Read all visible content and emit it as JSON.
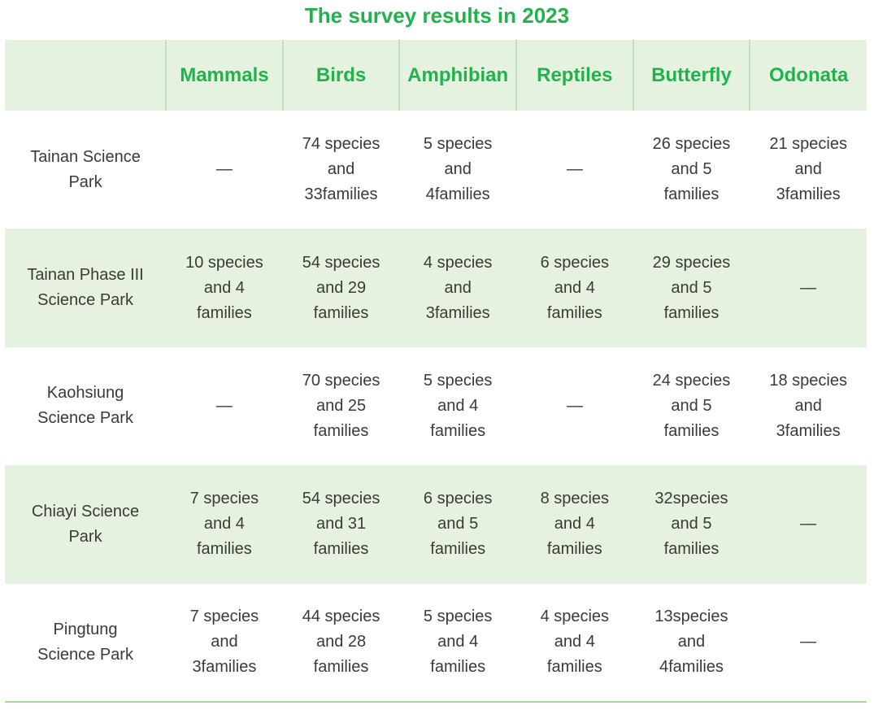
{
  "title": "The survey results in 2023",
  "columns": [
    "",
    "Mammals",
    "Birds",
    "Amphibian",
    "Reptiles",
    "Butterfly",
    "Odonata"
  ],
  "rows": [
    {
      "park": [
        "Tainan Science",
        "Park"
      ],
      "cells": [
        [
          "—"
        ],
        [
          "74 species",
          "and",
          "33families"
        ],
        [
          "5 species",
          "and",
          "4families"
        ],
        [
          "—"
        ],
        [
          "26 species",
          "and 5",
          "families"
        ],
        [
          "21 species",
          "and",
          "3families"
        ]
      ]
    },
    {
      "park": [
        "Tainan Phase III",
        "Science Park"
      ],
      "cells": [
        [
          "10 species",
          "and 4",
          "families"
        ],
        [
          "54 species",
          "and 29",
          "families"
        ],
        [
          "4 species",
          "and",
          "3families"
        ],
        [
          "6 species",
          "and 4",
          "families"
        ],
        [
          "29 species",
          "and 5",
          "families"
        ],
        [
          "—"
        ]
      ]
    },
    {
      "park": [
        "Kaohsiung",
        "Science Park"
      ],
      "cells": [
        [
          "—"
        ],
        [
          "70 species",
          "and 25",
          "families"
        ],
        [
          "5 species",
          "and 4",
          "families"
        ],
        [
          "—"
        ],
        [
          "24 species",
          "and 5",
          "families"
        ],
        [
          "18 species",
          "and",
          "3families"
        ]
      ]
    },
    {
      "park": [
        "Chiayi Science",
        "Park"
      ],
      "cells": [
        [
          "7 species",
          "and 4",
          "families"
        ],
        [
          "54 species",
          "and 31",
          "families"
        ],
        [
          "6 species",
          "and 5",
          "families"
        ],
        [
          "8 species",
          "and 4",
          "families"
        ],
        [
          "32species",
          "and 5",
          "families"
        ],
        [
          "—"
        ]
      ]
    },
    {
      "park": [
        "Pingtung",
        "Science Park"
      ],
      "cells": [
        [
          "7 species",
          "and",
          "3families"
        ],
        [
          "44 species",
          "and 28",
          "families"
        ],
        [
          "5 species",
          "and 4",
          "families"
        ],
        [
          "4 species",
          "and 4",
          "families"
        ],
        [
          "13species",
          "and",
          "4families"
        ],
        [
          "—"
        ]
      ]
    }
  ],
  "colors": {
    "accent": "#22b24c",
    "shade": "#e6f2e0",
    "divider": "#c5e0b8",
    "text": "#3a3a3a"
  }
}
